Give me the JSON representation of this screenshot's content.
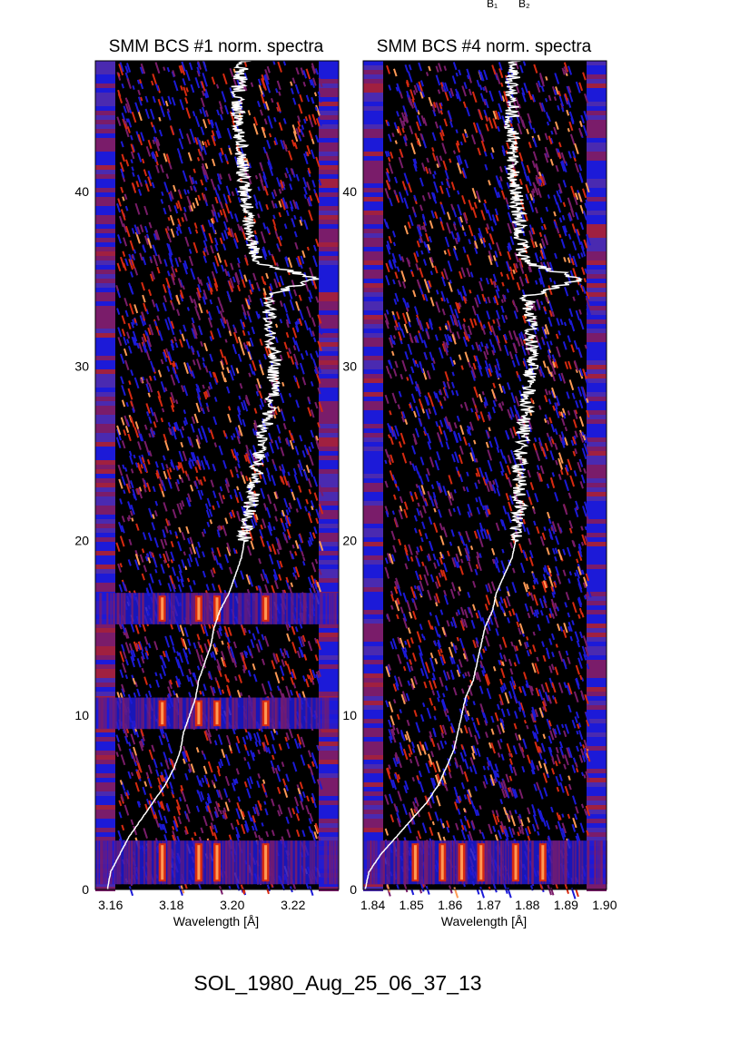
{
  "event_id": "SOL_1980_Aug_25_06_37_13",
  "top_markers": [
    "B₁",
    "B₂"
  ],
  "chart_data": [
    {
      "type": "heatmap",
      "title": "SMM BCS #1 norm. spectra",
      "xlabel": "Wavelength [Å]",
      "ylabel": "",
      "xlim": [
        3.155,
        3.235
      ],
      "ylim": [
        0,
        47.5
      ],
      "xticks": [
        3.16,
        3.18,
        3.2,
        3.22
      ],
      "xtick_labels": [
        "3.16",
        "3.18",
        "3.20",
        "3.22"
      ],
      "yticks": [
        0,
        10,
        20,
        30,
        40
      ],
      "ytick_labels": [
        "0",
        "10",
        "20",
        "30",
        "40"
      ],
      "colormap": [
        "#000000",
        "#1c1ad8",
        "#7a1c6a",
        "#d82a10",
        "#ff9a55"
      ],
      "overlay_color": "#ffffff",
      "bright_bands": [
        [
          0.3,
          2.8
        ],
        [
          9.2,
          11.0
        ],
        [
          15.2,
          17.0
        ]
      ],
      "emission_lines": [
        3.177,
        3.189,
        3.195,
        3.211
      ],
      "lightcurve": {
        "y": [
          0,
          1,
          2,
          3,
          4,
          5,
          6,
          7,
          8,
          9,
          10,
          11,
          12,
          13,
          14,
          15,
          16,
          17,
          18,
          19,
          20,
          22,
          24,
          26,
          28,
          30,
          32,
          34,
          35,
          36,
          38,
          40,
          42,
          44,
          46,
          47.5
        ],
        "x": [
          3.159,
          3.16,
          3.163,
          3.166,
          3.17,
          3.174,
          3.178,
          3.181,
          3.183,
          3.184,
          3.186,
          3.188,
          3.189,
          3.191,
          3.193,
          3.194,
          3.196,
          3.199,
          3.201,
          3.203,
          3.204,
          3.206,
          3.208,
          3.21,
          3.213,
          3.214,
          3.213,
          3.211,
          3.228,
          3.208,
          3.206,
          3.204,
          3.203,
          3.202,
          3.202,
          3.204
        ]
      }
    },
    {
      "type": "heatmap",
      "title": "SMM BCS #4 norm. spectra",
      "xlabel": "Wavelength [Å]",
      "ylabel": "",
      "xlim": [
        1.8375,
        1.9005
      ],
      "ylim": [
        0,
        47.5
      ],
      "xticks": [
        1.84,
        1.85,
        1.86,
        1.87,
        1.88,
        1.89,
        1.9
      ],
      "xtick_labels": [
        "1.84",
        "1.85",
        "1.86",
        "1.87",
        "1.88",
        "1.89",
        "1.90"
      ],
      "yticks": [
        0,
        10,
        20,
        30,
        40
      ],
      "ytick_labels": [
        "0",
        "10",
        "20",
        "30",
        "40"
      ],
      "colormap": [
        "#000000",
        "#1c1ad8",
        "#7a1c6a",
        "#d82a10",
        "#ff9a55"
      ],
      "overlay_color": "#ffffff",
      "bright_bands": [
        [
          0.3,
          2.8
        ]
      ],
      "emission_lines": [
        1.851,
        1.858,
        1.863,
        1.868,
        1.877,
        1.884
      ],
      "lightcurve": {
        "y": [
          0,
          1,
          2,
          3,
          4,
          5,
          6,
          7,
          8,
          9,
          10,
          11,
          12,
          13,
          14,
          15,
          16,
          17,
          18,
          19,
          20,
          22,
          24,
          26,
          28,
          30,
          32,
          34,
          35,
          36,
          38,
          40,
          42,
          44,
          46,
          47.5
        ],
        "x": [
          1.838,
          1.839,
          1.842,
          1.846,
          1.85,
          1.854,
          1.857,
          1.859,
          1.861,
          1.862,
          1.863,
          1.864,
          1.866,
          1.867,
          1.868,
          1.869,
          1.871,
          1.872,
          1.874,
          1.876,
          1.877,
          1.878,
          1.878,
          1.879,
          1.88,
          1.881,
          1.881,
          1.88,
          1.894,
          1.879,
          1.878,
          1.877,
          1.876,
          1.876,
          1.876,
          1.877
        ]
      }
    }
  ]
}
